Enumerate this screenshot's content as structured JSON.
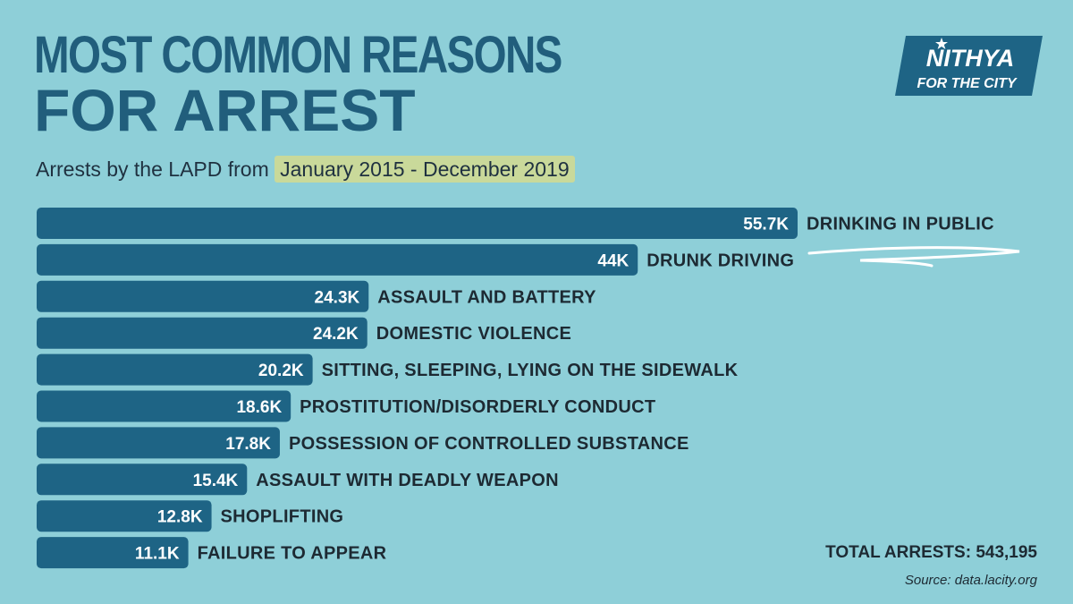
{
  "header": {
    "title_line_1": "MOST COMMON REASONS",
    "title_line_2": "FOR ARREST",
    "subtitle_prefix": "Arrests by the LAPD from ",
    "subtitle_highlight": "January 2015 - December 2019"
  },
  "logo": {
    "line_1": "NITHYA",
    "line_2": "FOR THE CITY"
  },
  "colors": {
    "background": "#8ecfd8",
    "bar": "#1e6485",
    "title": "#215e7c",
    "highlight": "#c9d99a"
  },
  "chart_data": {
    "type": "bar",
    "orientation": "horizontal",
    "categories": [
      "DRINKING IN PUBLIC",
      "DRUNK DRIVING",
      "ASSAULT AND BATTERY",
      "DOMESTIC VIOLENCE",
      "SITTING, SLEEPING, LYING ON THE SIDEWALK",
      "PROSTITUTION/DISORDERLY CONDUCT",
      "POSSESSION OF CONTROLLED SUBSTANCE",
      "ASSAULT WITH DEADLY WEAPON",
      "SHOPLIFTING",
      "FAILURE TO APPEAR"
    ],
    "values": [
      55700,
      44000,
      24300,
      24200,
      20200,
      18600,
      17800,
      15400,
      12800,
      11100
    ],
    "value_labels": [
      "55.7K",
      "44K",
      "24.3K",
      "24.2K",
      "20.2K",
      "18.6K",
      "17.8K",
      "15.4K",
      "12.8K",
      "11.1K"
    ],
    "xlim": [
      0,
      55700
    ],
    "grid": false,
    "legend": false
  },
  "footer": {
    "total": "TOTAL ARRESTS: 543,195",
    "source": "Source: data.lacity.org"
  }
}
